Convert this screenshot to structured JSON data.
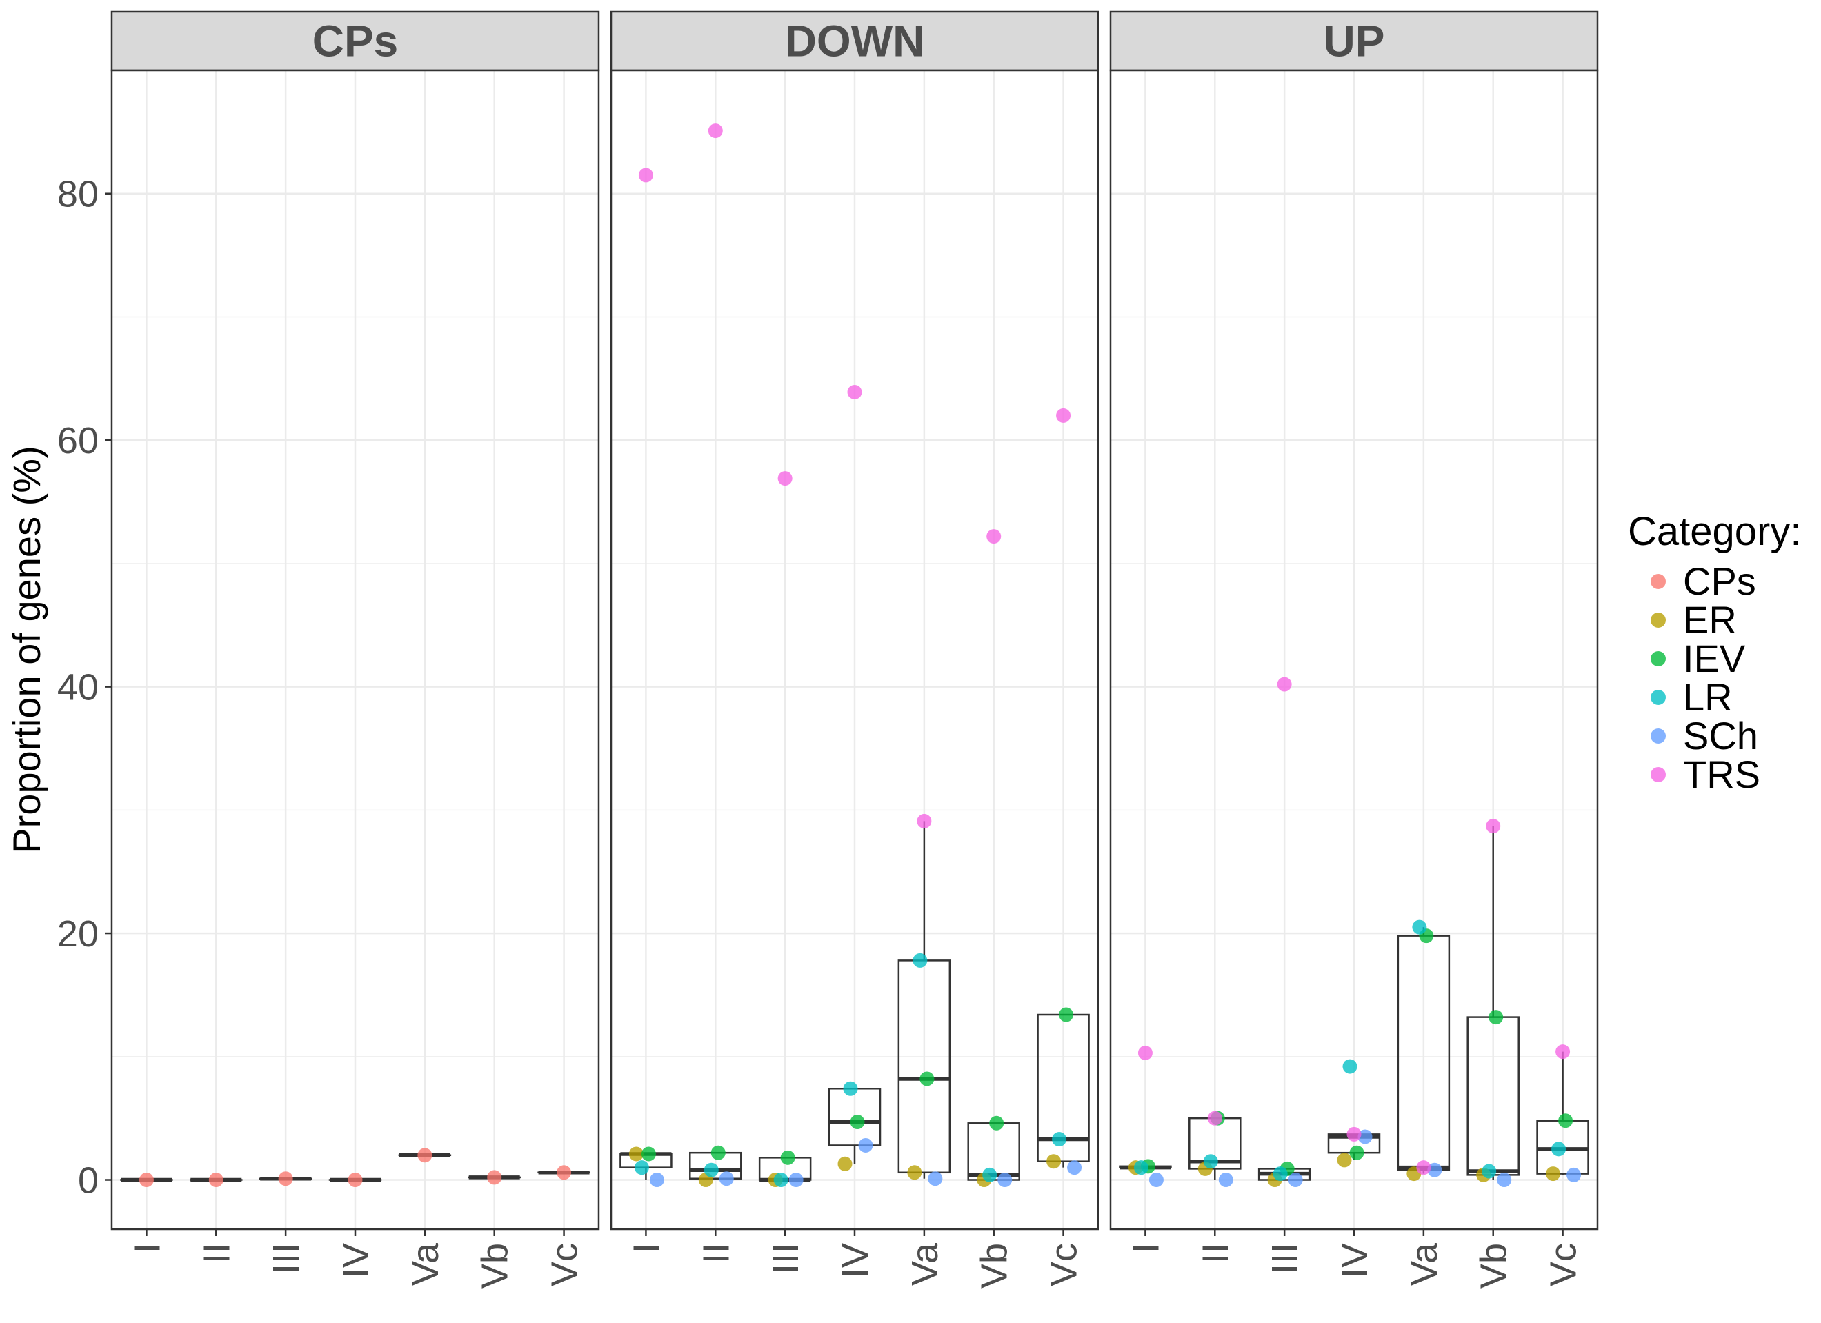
{
  "chart_data": {
    "type": "box-with-jitter",
    "ylabel": "Proportion of genes (%)",
    "xlabel": "",
    "ylim": [
      -4,
      90
    ],
    "yticks": [
      0,
      20,
      40,
      60,
      80
    ],
    "categories": [
      "I",
      "II",
      "III",
      "IV",
      "Va",
      "Vb",
      "Vc"
    ],
    "grid": true,
    "legend": {
      "title": "Category:",
      "position": "right",
      "items": [
        {
          "name": "CPs",
          "color": "#F8766D"
        },
        {
          "name": "ER",
          "color": "#B79F00"
        },
        {
          "name": "IEV",
          "color": "#00BA38"
        },
        {
          "name": "LR",
          "color": "#00BFC4"
        },
        {
          "name": "SCh",
          "color": "#619CFF"
        },
        {
          "name": "TRS",
          "color": "#F564E3"
        }
      ]
    },
    "panels": [
      {
        "title": "CPs",
        "groups": [
          {
            "x": "I",
            "points": [
              {
                "category": "CPs",
                "value": 0
              }
            ]
          },
          {
            "x": "II",
            "points": [
              {
                "category": "CPs",
                "value": 0
              }
            ]
          },
          {
            "x": "III",
            "points": [
              {
                "category": "CPs",
                "value": 0.1
              }
            ]
          },
          {
            "x": "IV",
            "points": [
              {
                "category": "CPs",
                "value": 0
              }
            ]
          },
          {
            "x": "Va",
            "points": [
              {
                "category": "CPs",
                "value": 2
              }
            ]
          },
          {
            "x": "Vb",
            "points": [
              {
                "category": "CPs",
                "value": 0.2
              }
            ]
          },
          {
            "x": "Vc",
            "points": [
              {
                "category": "CPs",
                "value": 0.6
              }
            ]
          }
        ]
      },
      {
        "title": "DOWN",
        "groups": [
          {
            "x": "I",
            "points": [
              {
                "category": "ER",
                "value": 2.1
              },
              {
                "category": "IEV",
                "value": 2.1
              },
              {
                "category": "LR",
                "value": 1.0
              },
              {
                "category": "SCh",
                "value": 0.0
              },
              {
                "category": "TRS",
                "value": 81.5
              }
            ]
          },
          {
            "x": "II",
            "points": [
              {
                "category": "ER",
                "value": 0.0
              },
              {
                "category": "IEV",
                "value": 2.2
              },
              {
                "category": "LR",
                "value": 0.8
              },
              {
                "category": "SCh",
                "value": 0.1
              },
              {
                "category": "TRS",
                "value": 85.1
              }
            ]
          },
          {
            "x": "III",
            "points": [
              {
                "category": "ER",
                "value": 0.0
              },
              {
                "category": "IEV",
                "value": 1.8
              },
              {
                "category": "LR",
                "value": 0.0
              },
              {
                "category": "SCh",
                "value": 0.0
              },
              {
                "category": "TRS",
                "value": 56.9
              }
            ]
          },
          {
            "x": "IV",
            "points": [
              {
                "category": "ER",
                "value": 1.3
              },
              {
                "category": "IEV",
                "value": 4.7
              },
              {
                "category": "LR",
                "value": 7.4
              },
              {
                "category": "SCh",
                "value": 2.8
              },
              {
                "category": "TRS",
                "value": 63.9
              }
            ]
          },
          {
            "x": "Va",
            "points": [
              {
                "category": "ER",
                "value": 0.6
              },
              {
                "category": "IEV",
                "value": 8.2
              },
              {
                "category": "LR",
                "value": 17.8
              },
              {
                "category": "SCh",
                "value": 0.1
              },
              {
                "category": "TRS",
                "value": 29.1
              }
            ]
          },
          {
            "x": "Vb",
            "points": [
              {
                "category": "ER",
                "value": 0.0
              },
              {
                "category": "IEV",
                "value": 4.6
              },
              {
                "category": "LR",
                "value": 0.4
              },
              {
                "category": "SCh",
                "value": 0.0
              },
              {
                "category": "TRS",
                "value": 52.2
              }
            ]
          },
          {
            "x": "Vc",
            "points": [
              {
                "category": "ER",
                "value": 1.5
              },
              {
                "category": "IEV",
                "value": 13.4
              },
              {
                "category": "LR",
                "value": 3.3
              },
              {
                "category": "SCh",
                "value": 1.0
              },
              {
                "category": "TRS",
                "value": 62.0
              }
            ]
          }
        ]
      },
      {
        "title": "UP",
        "groups": [
          {
            "x": "I",
            "points": [
              {
                "category": "ER",
                "value": 1.0
              },
              {
                "category": "IEV",
                "value": 1.1
              },
              {
                "category": "LR",
                "value": 1.0
              },
              {
                "category": "SCh",
                "value": 0.0
              },
              {
                "category": "TRS",
                "value": 10.3
              }
            ]
          },
          {
            "x": "II",
            "points": [
              {
                "category": "ER",
                "value": 0.9
              },
              {
                "category": "IEV",
                "value": 5.0
              },
              {
                "category": "LR",
                "value": 1.5
              },
              {
                "category": "SCh",
                "value": 0.0
              },
              {
                "category": "TRS",
                "value": 5.0
              }
            ]
          },
          {
            "x": "III",
            "points": [
              {
                "category": "ER",
                "value": 0.0
              },
              {
                "category": "IEV",
                "value": 0.9
              },
              {
                "category": "LR",
                "value": 0.5
              },
              {
                "category": "SCh",
                "value": 0.0
              },
              {
                "category": "TRS",
                "value": 40.2
              }
            ]
          },
          {
            "x": "IV",
            "points": [
              {
                "category": "ER",
                "value": 1.6
              },
              {
                "category": "IEV",
                "value": 2.2
              },
              {
                "category": "LR",
                "value": 9.2
              },
              {
                "category": "SCh",
                "value": 3.5
              },
              {
                "category": "TRS",
                "value": 3.7
              }
            ]
          },
          {
            "x": "Va",
            "points": [
              {
                "category": "ER",
                "value": 0.5
              },
              {
                "category": "IEV",
                "value": 19.8
              },
              {
                "category": "LR",
                "value": 20.5
              },
              {
                "category": "SCh",
                "value": 0.8
              },
              {
                "category": "TRS",
                "value": 1.0
              }
            ]
          },
          {
            "x": "Vb",
            "points": [
              {
                "category": "ER",
                "value": 0.4
              },
              {
                "category": "IEV",
                "value": 13.2
              },
              {
                "category": "LR",
                "value": 0.7
              },
              {
                "category": "SCh",
                "value": 0.0
              },
              {
                "category": "TRS",
                "value": 28.7
              }
            ]
          },
          {
            "x": "Vc",
            "points": [
              {
                "category": "ER",
                "value": 0.5
              },
              {
                "category": "IEV",
                "value": 4.8
              },
              {
                "category": "LR",
                "value": 2.5
              },
              {
                "category": "SCh",
                "value": 0.4
              },
              {
                "category": "TRS",
                "value": 10.4
              }
            ]
          }
        ]
      }
    ]
  }
}
